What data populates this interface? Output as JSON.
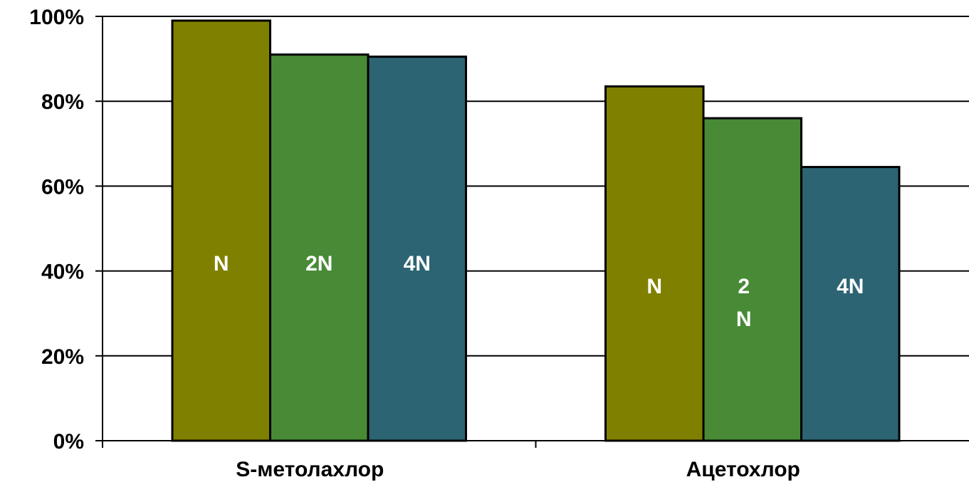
{
  "chart_data": {
    "type": "bar",
    "title": "",
    "xlabel": "",
    "ylabel": "",
    "ylim": [
      0,
      100
    ],
    "y_ticks": [
      0,
      20,
      40,
      60,
      80,
      100
    ],
    "y_tick_suffix": "%",
    "grid": true,
    "legend": "none",
    "categories": [
      "S-метолахлор",
      "Ацетохлор"
    ],
    "series": [
      {
        "label_lines": [
          [
            "N"
          ],
          [
            "N"
          ]
        ],
        "color": "#808000",
        "values": [
          99,
          83.5
        ]
      },
      {
        "label_lines": [
          [
            "2N"
          ],
          [
            "2",
            "N"
          ]
        ],
        "color": "#488a36",
        "values": [
          91,
          76
        ]
      },
      {
        "label_lines": [
          [
            "4N"
          ],
          [
            "4N"
          ]
        ],
        "color": "#2c6473",
        "values": [
          90.5,
          64.5
        ]
      }
    ]
  }
}
